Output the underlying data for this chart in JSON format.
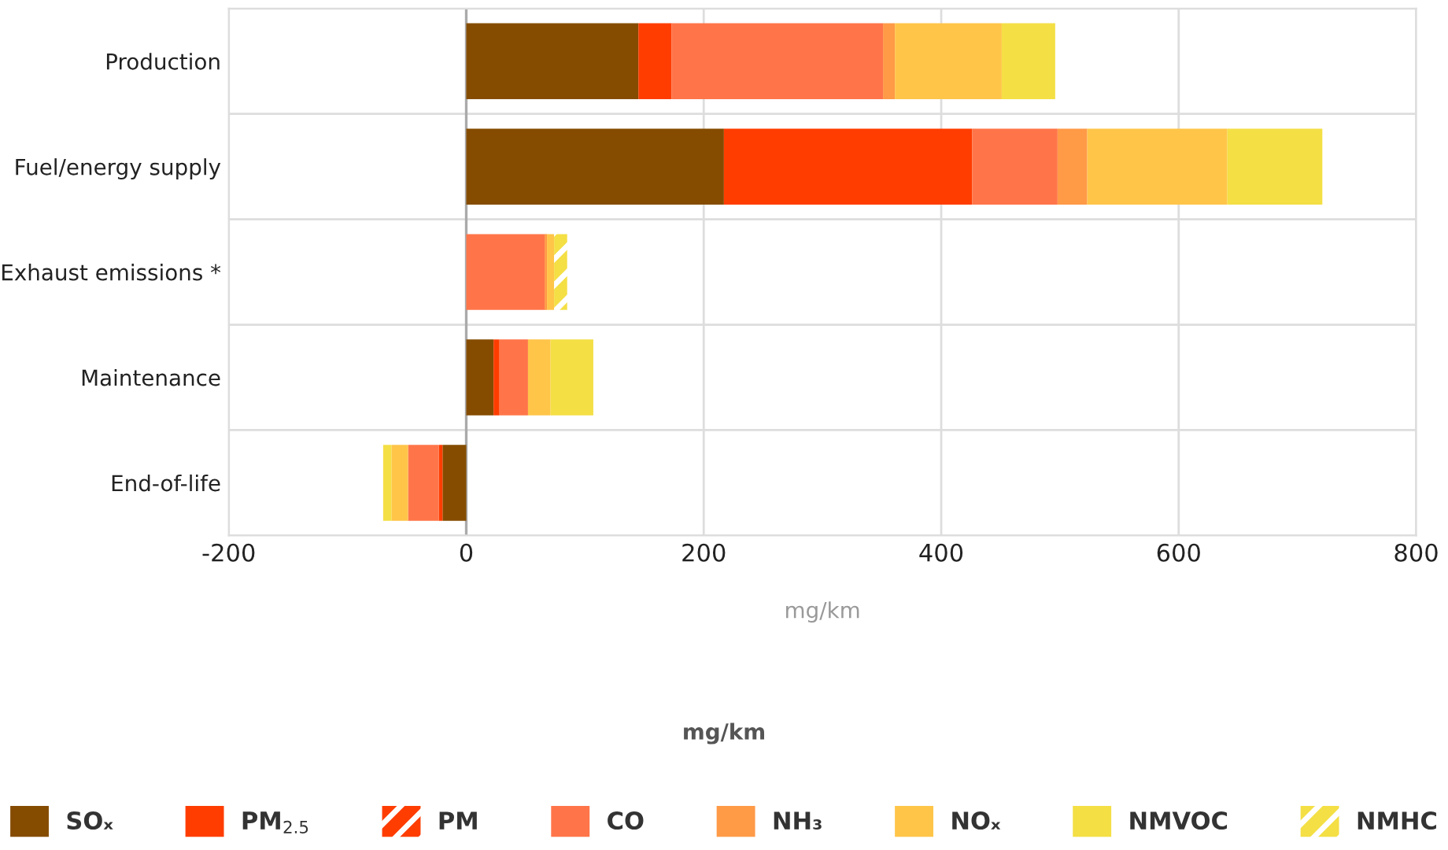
{
  "chart_data": {
    "type": "bar",
    "orientation": "horizontal",
    "stacked": true,
    "categories": [
      "Production",
      "Fuel/energy supply",
      "Exhaust emissions *",
      "Maintenance",
      "End-of-life"
    ],
    "series": [
      {
        "name": "SOₓ",
        "color": "#854c00",
        "values": [
          145,
          217,
          null,
          23,
          -20
        ]
      },
      {
        "name": "PM$_{2.5}$",
        "color": "#ff3d00",
        "values": [
          28,
          209,
          null,
          5,
          -3
        ]
      },
      {
        "name": "PM",
        "color": "#ff3d00",
        "line_style": "dashed",
        "values": [
          null,
          null,
          null,
          null,
          null
        ]
      },
      {
        "name": "CO",
        "color": "#ff7549",
        "values": [
          178,
          72,
          66,
          24,
          -26
        ]
      },
      {
        "name": "NH₃",
        "color": "#ff9a47",
        "values": [
          10,
          25,
          2,
          null,
          null
        ]
      },
      {
        "name": "NOₓ",
        "color": "#ffc549",
        "values": [
          90,
          118,
          6,
          19,
          -14
        ]
      },
      {
        "name": "NMVOC",
        "color": "#f4df45",
        "values": [
          45,
          80,
          null,
          36,
          -7
        ]
      },
      {
        "name": "NMHC",
        "color": "#f4df45",
        "line_style": "dashed",
        "values": [
          null,
          null,
          11,
          null,
          null
        ]
      }
    ],
    "xlim": [
      -200,
      800
    ],
    "xticks": [
      -200,
      0,
      200,
      400,
      600,
      800
    ],
    "xlabel": "mg/km",
    "annotations": [
      "mg/km"
    ],
    "ref_lines": [
      {
        "axis": "x",
        "value": 0,
        "color": "#aaaaaa"
      }
    ],
    "grid": true,
    "legend": "bottom"
  }
}
